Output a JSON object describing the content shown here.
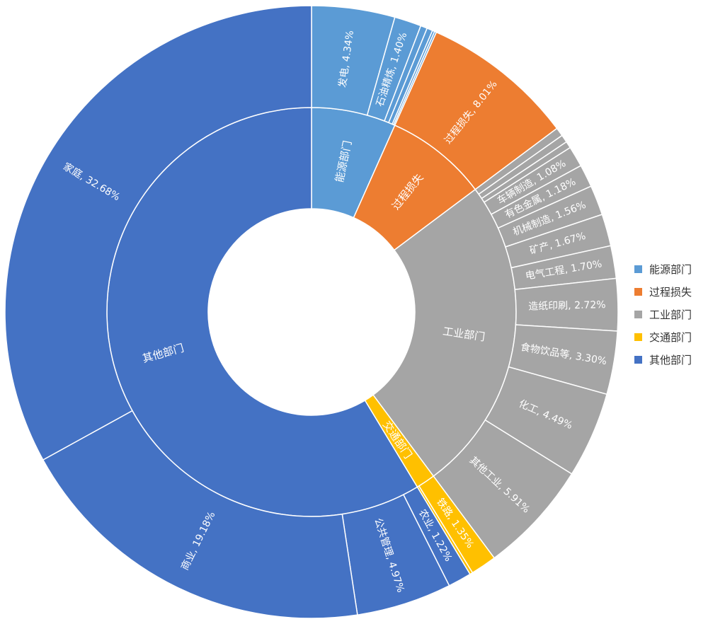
{
  "chart_data": {
    "type": "sunburst",
    "title": "",
    "legend": {
      "position": "right"
    },
    "inner": [
      {
        "name": "能源部门",
        "color": "#5B9BD5"
      },
      {
        "name": "过程损失",
        "color": "#ED7D31"
      },
      {
        "name": "工业部门",
        "color": "#A5A5A5"
      },
      {
        "name": "交通部门",
        "color": "#FFC000"
      },
      {
        "name": "其他部门",
        "color": "#4472C4"
      }
    ],
    "outer": [
      {
        "parent": "能源部门",
        "name": "发电",
        "label": "发电, 4.34%",
        "value": 4.34
      },
      {
        "parent": "能源部门",
        "name": "石油精炼",
        "label": "石油精炼, 1.40%",
        "value": 1.4
      },
      {
        "parent": "能源部门",
        "name": "",
        "label": "",
        "value": 0.35
      },
      {
        "parent": "能源部门",
        "name": "",
        "label": "",
        "value": 0.3
      },
      {
        "parent": "能源部门",
        "name": "",
        "label": "",
        "value": 0.12
      },
      {
        "parent": "能源部门",
        "name": "",
        "label": "",
        "value": 0.1
      },
      {
        "parent": "过程损失",
        "name": "过程损失",
        "label": "过程损失, 8.01%",
        "value": 8.01
      },
      {
        "parent": "工业部门",
        "name": "",
        "label": "",
        "value": 0.45
      },
      {
        "parent": "工业部门",
        "name": "",
        "label": "",
        "value": 0.4
      },
      {
        "parent": "工业部门",
        "name": "",
        "label": "",
        "value": 0.35
      },
      {
        "parent": "工业部门",
        "name": "车辆制造",
        "label": "车辆制造, 1.08%",
        "value": 1.08
      },
      {
        "parent": "工业部门",
        "name": "有色金属",
        "label": "有色金属, 1.18%",
        "value": 1.18
      },
      {
        "parent": "工业部门",
        "name": "机械制造",
        "label": "机械制造, 1.56%",
        "value": 1.56
      },
      {
        "parent": "工业部门",
        "name": "矿产",
        "label": "矿产, 1.67%",
        "value": 1.67
      },
      {
        "parent": "工业部门",
        "name": "电气工程",
        "label": "电气工程, 1.70%",
        "value": 1.7
      },
      {
        "parent": "工业部门",
        "name": "造纸印刷",
        "label": "造纸印刷, 2.72%",
        "value": 2.72
      },
      {
        "parent": "工业部门",
        "name": "食物饮品等",
        "label": "食物饮品等, 3.30%",
        "value": 3.3
      },
      {
        "parent": "工业部门",
        "name": "化工",
        "label": "化工, 4.49%",
        "value": 4.49
      },
      {
        "parent": "工业部门",
        "name": "其他工业",
        "label": "其他工业, 5.91%",
        "value": 5.91
      },
      {
        "parent": "交通部门",
        "name": "铁路",
        "label": "铁路, 1.35%",
        "value": 1.35
      },
      {
        "parent": "交通部门",
        "name": "",
        "label": "",
        "value": 0.15
      },
      {
        "parent": "其他部门",
        "name": "农业",
        "label": "农业, 1.22%",
        "value": 1.22
      },
      {
        "parent": "其他部门",
        "name": "公共管理",
        "label": "公共管理, 4.97%",
        "value": 4.97
      },
      {
        "parent": "其他部门",
        "name": "商业",
        "label": "商业, 19.18%",
        "value": 19.18
      },
      {
        "parent": "其他部门",
        "name": "家庭",
        "label": "家庭, 32.68%",
        "value": 32.68
      }
    ]
  }
}
